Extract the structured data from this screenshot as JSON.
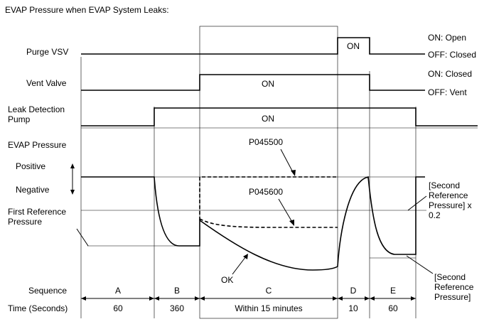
{
  "title": "EVAP Pressure when EVAP System Leaks:",
  "rows": {
    "purge_vsv": "Purge VSV",
    "vent_valve": "Vent Valve",
    "leak_pump_line1": "Leak Detection",
    "leak_pump_line2": "Pump",
    "evap_pressure": "EVAP Pressure",
    "positive": "Positive",
    "negative": "Negative",
    "first_ref_line1": "First Reference",
    "first_ref_line2": "Pressure",
    "sequence": "Sequence",
    "time": "Time (Seconds)"
  },
  "states": {
    "purge_on": "ON: Open",
    "purge_off": "OFF: Closed",
    "vent_on": "ON: Closed",
    "vent_off": "OFF: Vent",
    "on": "ON"
  },
  "codes": {
    "upper": "P045500",
    "lower": "P045600",
    "ok": "OK"
  },
  "notes": {
    "second_ref_factor_line1": "[Second",
    "second_ref_factor_line2": "Reference",
    "second_ref_factor_line3": "Pressure] x",
    "second_ref_factor_line4": "0.2",
    "second_ref_line1": "[Second",
    "second_ref_line2": "Reference",
    "second_ref_line3": "Pressure]"
  },
  "sequence": [
    {
      "label": "A",
      "time": "60"
    },
    {
      "label": "B",
      "time": "360"
    },
    {
      "label": "C",
      "time": "Within 15 minutes"
    },
    {
      "label": "D",
      "time": "10"
    },
    {
      "label": "E",
      "time": "60"
    }
  ]
}
